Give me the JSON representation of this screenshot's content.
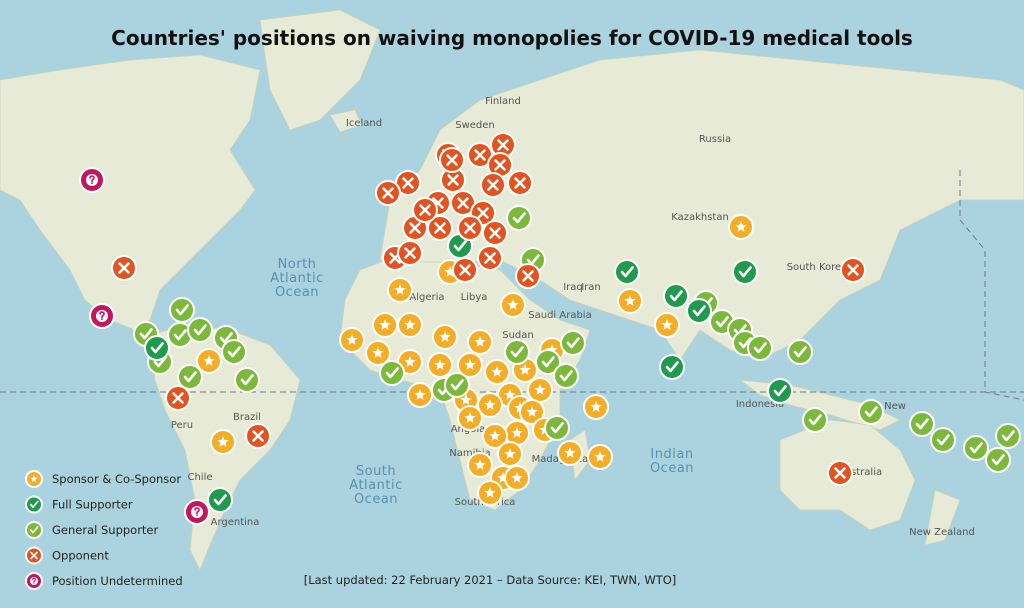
{
  "header": {
    "title": "Countries' positions on waiving monopolies for COVID-19 medical tools"
  },
  "legend": {
    "items": [
      "Sponsor & Co-Sponsor",
      "Full Supporter",
      "General Supporter",
      "Opponent",
      "Position Undetermined"
    ]
  },
  "map": {
    "labels": [
      "Finland",
      "Iceland",
      "Sweden",
      "Russia",
      "Kazakhstan",
      "Algeria",
      "Libya",
      "Saudi Arabia",
      "Iraq",
      "Iran",
      "Sudan",
      "South Korea",
      "Brazil",
      "Peru",
      "Chile",
      "Argentina",
      "Angola",
      "Namibia",
      "South Africa",
      "Madagascar",
      "Indonesia",
      "Australia",
      "New Zealand",
      "New"
    ],
    "oceans": [
      [
        "North",
        "Atlantic",
        "Ocean"
      ],
      [
        "South",
        "Atlantic",
        "Ocean"
      ],
      [
        "Indian",
        "Ocean"
      ]
    ]
  },
  "footer": {
    "note": "[Last updated: 22 February 2021 – Data Source: KEI, TWN, WTO]"
  }
}
